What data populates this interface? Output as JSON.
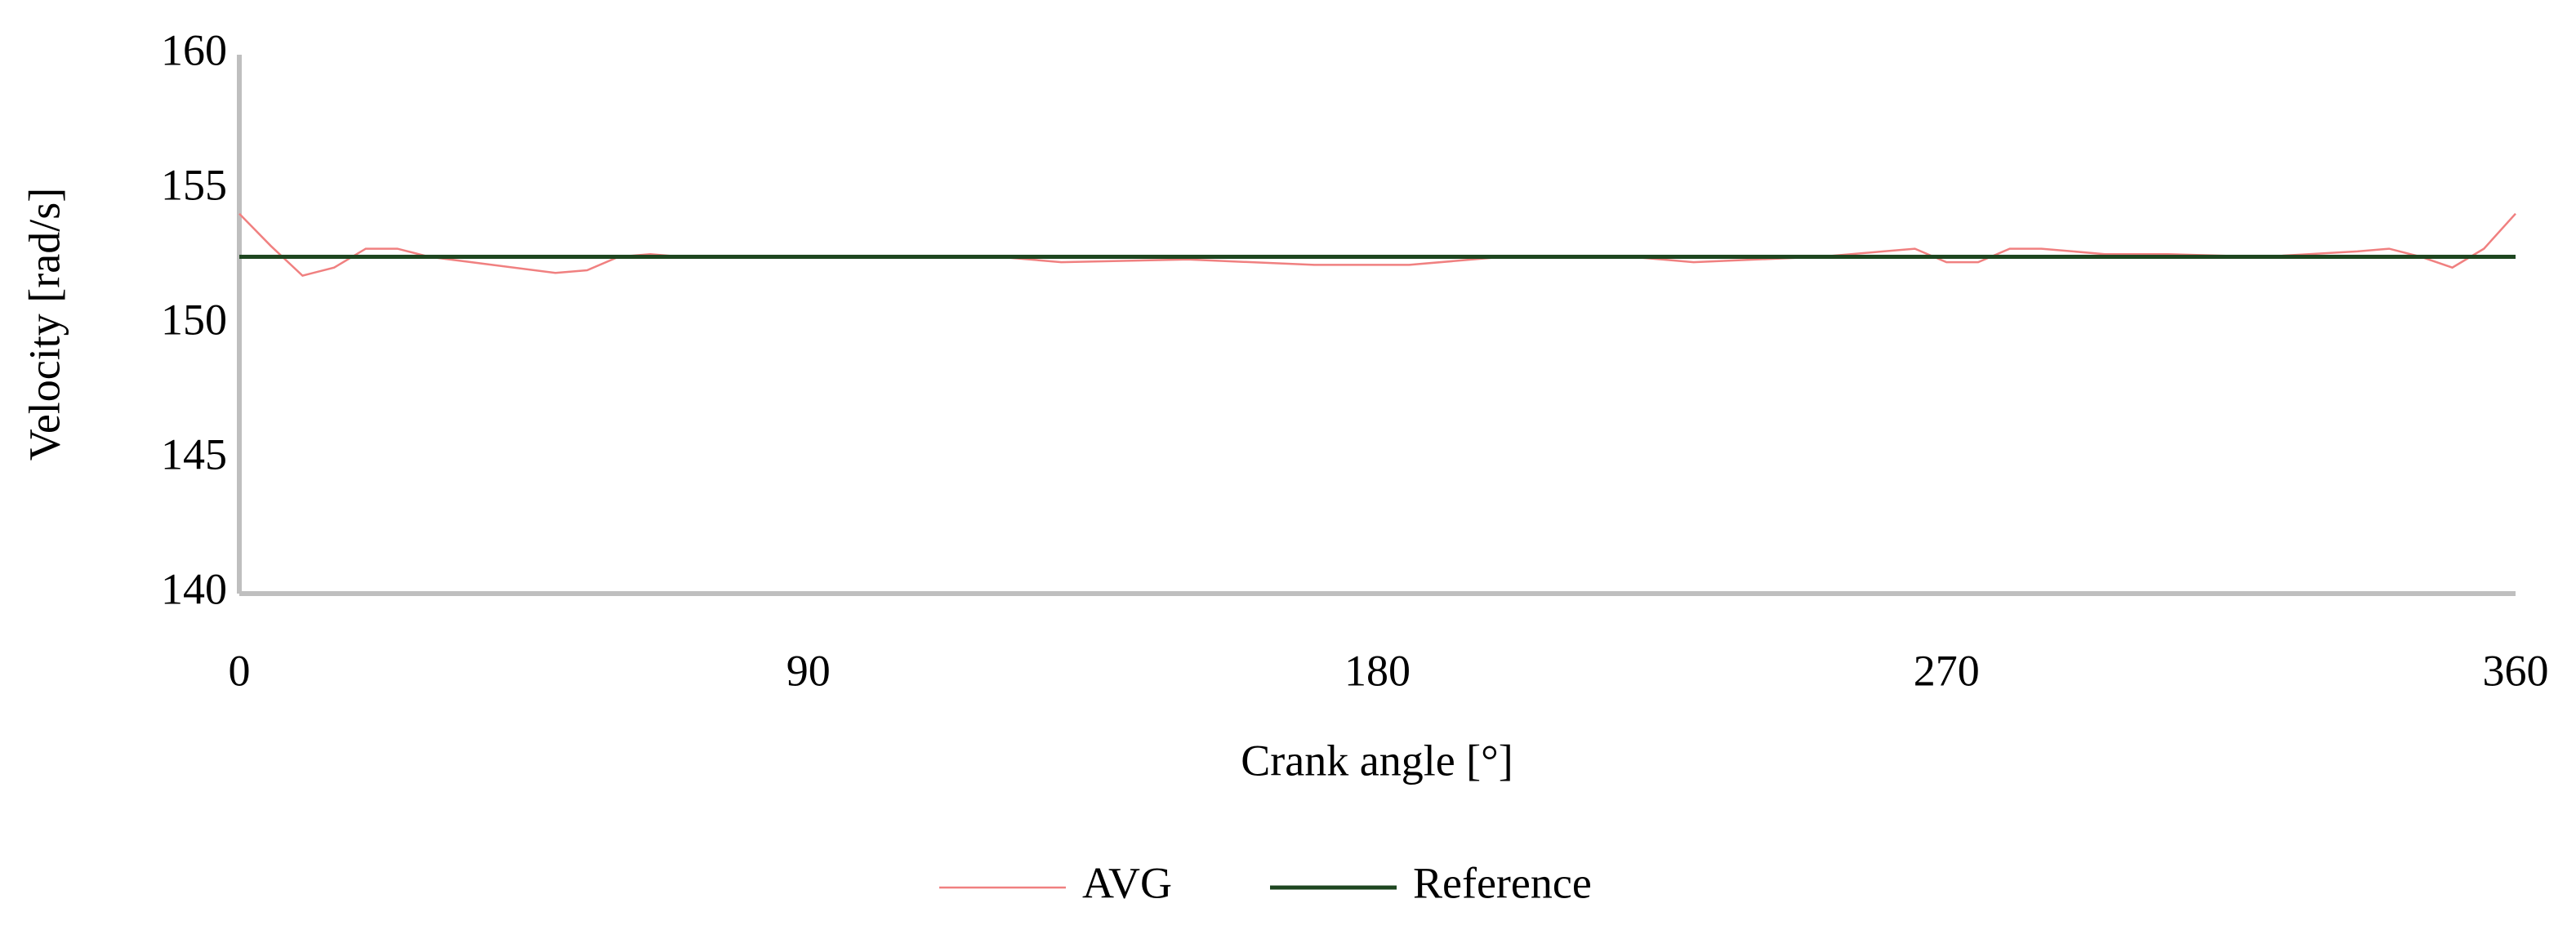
{
  "chart_data": {
    "type": "line",
    "x_label": "Crank angle [°]",
    "y_label": "Velocity [rad/s]",
    "xlim": [
      0,
      360
    ],
    "xticks": [
      0,
      90,
      180,
      270,
      360
    ],
    "ylim": [
      140,
      160
    ],
    "yticks": [
      140,
      145,
      150,
      155,
      160
    ],
    "grid": false,
    "legend": "bottom",
    "series": [
      {
        "name": "AVG",
        "color": "#f08080",
        "x": [
          0,
          5,
          10,
          15,
          20,
          25,
          30,
          40,
          50,
          55,
          60,
          65,
          70,
          120,
          130,
          150,
          170,
          185,
          195,
          200,
          210,
          220,
          230,
          240,
          250,
          260,
          265,
          270,
          275,
          280,
          285,
          295,
          305,
          320,
          335,
          340,
          345,
          350,
          355,
          360
        ],
        "values": [
          154.1,
          152.9,
          151.8,
          152.1,
          152.8,
          152.8,
          152.5,
          152.2,
          151.9,
          152.0,
          152.5,
          152.6,
          152.5,
          152.5,
          152.3,
          152.4,
          152.2,
          152.2,
          152.4,
          152.5,
          152.5,
          152.5,
          152.3,
          152.4,
          152.5,
          152.7,
          152.8,
          152.3,
          152.3,
          152.8,
          152.8,
          152.6,
          152.6,
          152.5,
          152.7,
          152.8,
          152.5,
          152.1,
          152.8,
          154.1
        ]
      },
      {
        "name": "Reference",
        "color": "#1e4620",
        "x": [
          0,
          360
        ],
        "values": [
          152.5,
          152.5
        ]
      }
    ]
  }
}
